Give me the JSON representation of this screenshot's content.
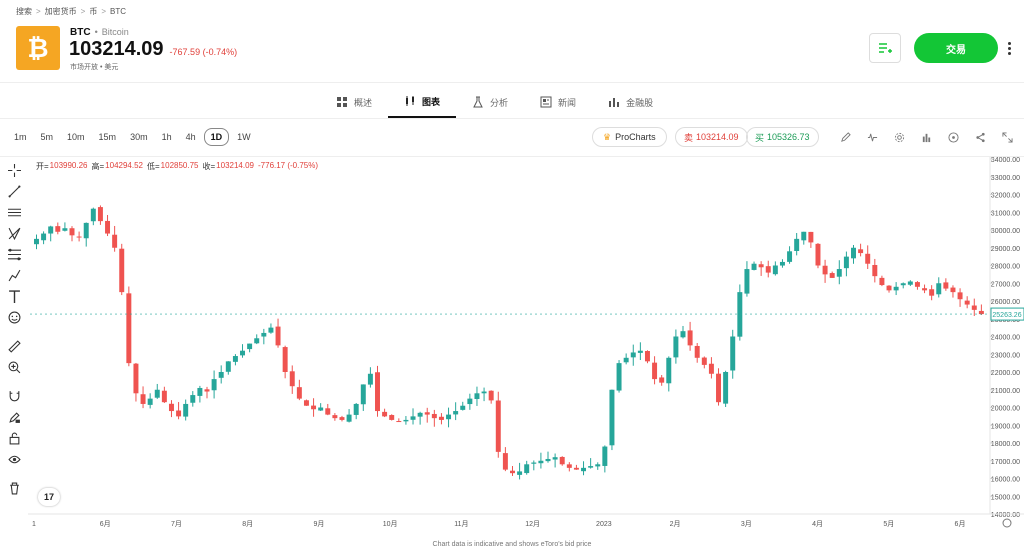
{
  "breadcrumb": [
    "搜索",
    "加密货币",
    "币",
    "BTC"
  ],
  "asset": {
    "logo_glyph": "₿",
    "symbol": "BTC",
    "name": "Bitcoin",
    "price": "103214.09",
    "change": "-767.59 (-0.74%)",
    "status": "市场开放 • 美元"
  },
  "header": {
    "trade_label": "交易"
  },
  "tabs": [
    {
      "label": "概述",
      "icon": "grid-icon"
    },
    {
      "label": "图表",
      "icon": "candles-icon"
    },
    {
      "label": "分析",
      "icon": "flask-icon"
    },
    {
      "label": "新闻",
      "icon": "newspaper-icon"
    },
    {
      "label": "金融股",
      "icon": "bar-chart-icon"
    }
  ],
  "intervals": [
    "1m",
    "5m",
    "10m",
    "15m",
    "30m",
    "1h",
    "4h",
    "1D",
    "1W"
  ],
  "active_interval": "1D",
  "toolbar": {
    "prochart_label": "ProCharts",
    "sell_label": "卖",
    "sell_price": "103214.09",
    "buy_label": "买",
    "buy_price": "105326.73"
  },
  "ohlc": {
    "open_label": "开=",
    "open": "103990.26",
    "high_label": "高=",
    "high": "104294.52",
    "low_label": "低=",
    "low": "102850.75",
    "close_label": "收=",
    "close": "103214.09",
    "change": "-776.17 (-0.75%)"
  },
  "colors": {
    "up": "#26a69a",
    "down": "#ef5350",
    "trade": "#13c636",
    "accent": "#f5a623"
  },
  "chart_data": {
    "type": "line",
    "x_labels": [
      "1",
      "6月",
      "7月",
      "8月",
      "9月",
      "10月",
      "11月",
      "12月",
      "2023",
      "2月",
      "3月",
      "4月",
      "5月",
      "6月"
    ],
    "y_ticks": [
      "34000.00",
      "33000.00",
      "32000.00",
      "31000.00",
      "30000.00",
      "29000.00",
      "28000.00",
      "27000.00",
      "26000.00",
      "25000.00",
      "24000.00",
      "23000.00",
      "22000.00",
      "21000.00",
      "20000.00",
      "19000.00",
      "18000.00",
      "17000.00",
      "16000.00",
      "15000.00",
      "14000.00"
    ],
    "ylim": [
      14000,
      34000
    ],
    "last_price": "25263.26",
    "last_value": 25263.26,
    "series": [
      {
        "values": [
          29500,
          29800,
          30200,
          29900,
          30100,
          29700,
          29600,
          30400,
          31200,
          30500,
          29800,
          29000,
          26500,
          22500,
          20800,
          20200,
          20500,
          21000,
          20300,
          19800,
          19500,
          20200,
          20700,
          21100,
          20900,
          21600,
          22000,
          22600,
          22900,
          23200,
          23600,
          23900,
          24200,
          24500,
          23500,
          22000,
          21200,
          20500,
          20100,
          19900,
          20000,
          19600,
          19400,
          19300,
          19600,
          20200,
          21300,
          21900,
          19800,
          19500,
          19300,
          19200,
          19300,
          19500,
          19700,
          19600,
          19400,
          19300,
          19600,
          19800,
          20100,
          20500,
          20800,
          20900,
          20400,
          17500,
          16500,
          16300,
          16400,
          16800,
          16900,
          17000,
          17100,
          17200,
          16800,
          16600,
          16500,
          16600,
          16700,
          16800,
          17800,
          21000,
          22500,
          22800,
          23100,
          23200,
          22600,
          21600,
          21400,
          22800,
          24000,
          24300,
          23500,
          22800,
          22400,
          21900,
          20300,
          22000,
          24000,
          26500,
          27800,
          28100,
          27900,
          27600,
          28000,
          28200,
          28800,
          29500,
          29900,
          29300,
          28000,
          27500,
          27300,
          27800,
          28500,
          29000,
          28700,
          28100,
          27400,
          26900,
          26600,
          26800,
          27000,
          27100,
          26800,
          26600,
          26300,
          27000,
          26700,
          26500,
          26100,
          25800,
          25500,
          25263
        ]
      }
    ]
  },
  "footer_note": "Chart data is indicative and shows eToro's bid price"
}
